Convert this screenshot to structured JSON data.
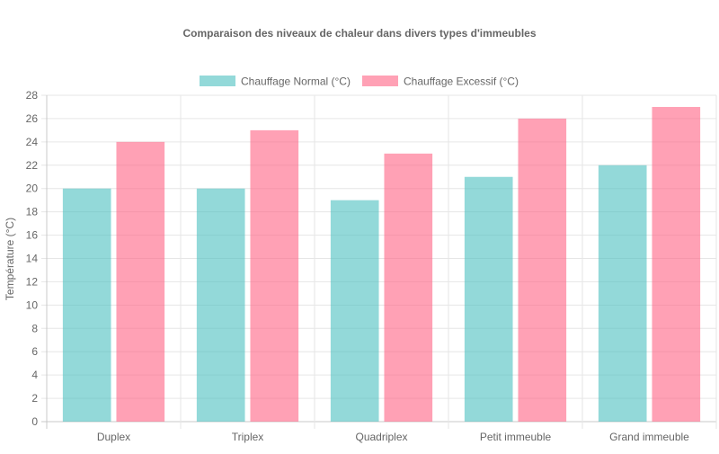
{
  "chart_data": {
    "type": "bar",
    "title": "Comparaison des niveaux de chaleur dans divers types d'immeubles",
    "ylabel": "Température (°C)",
    "xlabel": "",
    "categories": [
      "Duplex",
      "Triplex",
      "Quadriplex",
      "Petit immeuble",
      "Grand immeuble"
    ],
    "series": [
      {
        "name": "Chauffage Normal (°C)",
        "values": [
          20,
          20,
          19,
          21,
          22
        ],
        "color": "#4bc0c0"
      },
      {
        "name": "Chauffage Excessif (°C)",
        "values": [
          24,
          25,
          23,
          26,
          27
        ],
        "color": "#ff6384"
      }
    ],
    "ylim": [
      0,
      28
    ],
    "yticks": [
      0,
      2,
      4,
      6,
      8,
      10,
      12,
      14,
      16,
      18,
      20,
      22,
      24,
      26,
      28
    ],
    "grid": true,
    "legend_position": "top"
  }
}
